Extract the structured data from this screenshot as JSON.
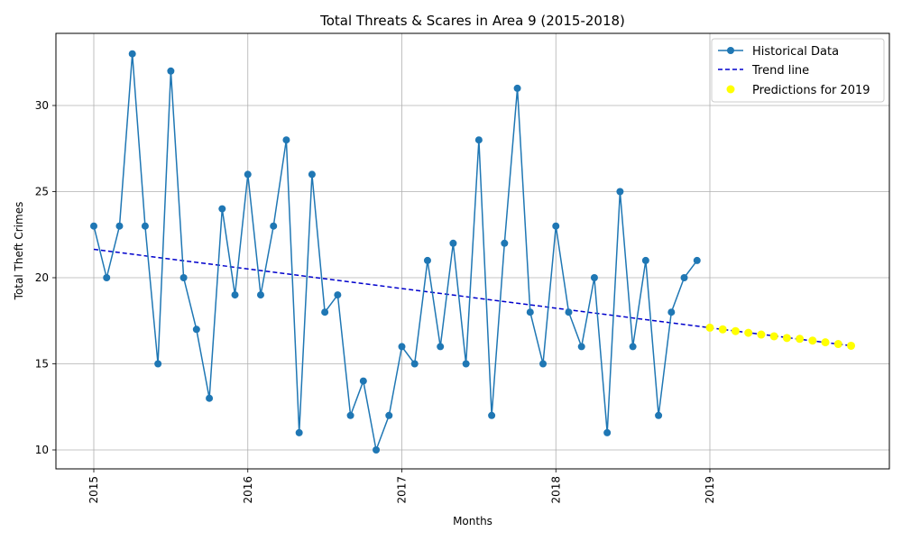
{
  "chart_data": {
    "type": "line",
    "title": "Total Threats & Scares in Area 9 (2015-2018)",
    "xlabel": "Months",
    "ylabel": "Total Theft Crimes",
    "x_ticks": [
      "2015",
      "2016",
      "2017",
      "2018",
      "2019"
    ],
    "y_ticks": [
      10,
      15,
      20,
      25,
      30
    ],
    "grid": true,
    "legend_position": "top-right",
    "colors": {
      "historical": "#1f77b4",
      "trend": "#0000cc",
      "predictions": "#ffff00"
    },
    "series": [
      {
        "name": "Historical Data",
        "style": "line-marker",
        "x": [
          "2015-01",
          "2015-02",
          "2015-03",
          "2015-04",
          "2015-05",
          "2015-06",
          "2015-07",
          "2015-08",
          "2015-09",
          "2015-10",
          "2015-11",
          "2015-12",
          "2016-01",
          "2016-02",
          "2016-03",
          "2016-04",
          "2016-05",
          "2016-06",
          "2016-07",
          "2016-08",
          "2016-09",
          "2016-10",
          "2016-11",
          "2016-12",
          "2017-01",
          "2017-02",
          "2017-03",
          "2017-04",
          "2017-05",
          "2017-06",
          "2017-07",
          "2017-08",
          "2017-09",
          "2017-10",
          "2017-11",
          "2017-12",
          "2018-01",
          "2018-02",
          "2018-03",
          "2018-04",
          "2018-05",
          "2018-06",
          "2018-07",
          "2018-08",
          "2018-09",
          "2018-10",
          "2018-11",
          "2018-12"
        ],
        "values": [
          23,
          20,
          23,
          33,
          23,
          15,
          32,
          20,
          17,
          13,
          24,
          19,
          26,
          19,
          23,
          28,
          11,
          26,
          18,
          19,
          12,
          14,
          10,
          12,
          16,
          15,
          21,
          16,
          22,
          15,
          28,
          12,
          22,
          31,
          18,
          15,
          23,
          18,
          16,
          20,
          11,
          25,
          16,
          21,
          12,
          18,
          20,
          21
        ]
      },
      {
        "name": "Trend line",
        "style": "dashed",
        "x": [
          "2015-01",
          "2019-12"
        ],
        "values": [
          21.65,
          16.05
        ]
      },
      {
        "name": "Predictions for 2019",
        "style": "scatter",
        "x": [
          "2019-01",
          "2019-02",
          "2019-03",
          "2019-04",
          "2019-05",
          "2019-06",
          "2019-07",
          "2019-08",
          "2019-09",
          "2019-10",
          "2019-11",
          "2019-12"
        ],
        "values": [
          17.1,
          17.0,
          16.9,
          16.8,
          16.7,
          16.6,
          16.5,
          16.45,
          16.35,
          16.25,
          16.15,
          16.05
        ]
      }
    ]
  }
}
